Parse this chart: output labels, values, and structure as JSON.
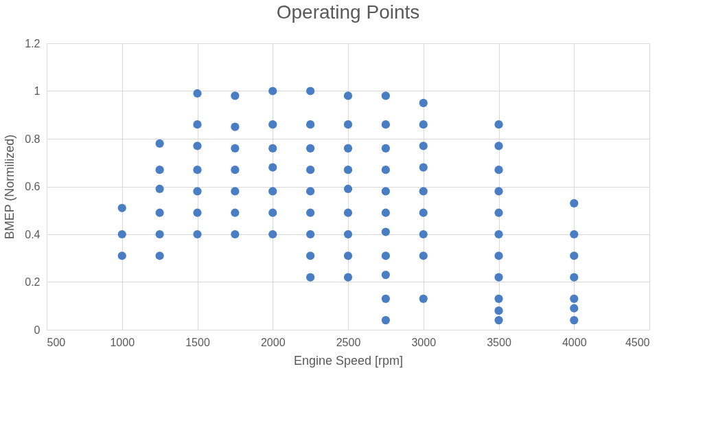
{
  "chart_data": {
    "type": "scatter",
    "title": "Operating Points",
    "xlabel": "Engine Speed [rpm]",
    "ylabel": "BMEP (Normilized)",
    "xlim": [
      500,
      4500
    ],
    "xticks": [
      500,
      1000,
      1500,
      2000,
      2500,
      3000,
      3500,
      4000,
      4500
    ],
    "ylim": [
      0,
      1.2
    ],
    "yticks": [
      0,
      0.2,
      0.4,
      0.6,
      0.8,
      1,
      1.2
    ],
    "grid": true,
    "marker": "circle",
    "series": [
      {
        "color": "#4a7ec4",
        "x": [
          1000,
          1000,
          1000,
          1250,
          1250,
          1250,
          1250,
          1250,
          1250,
          1500,
          1500,
          1500,
          1500,
          1500,
          1500,
          1500,
          1750,
          1750,
          1750,
          1750,
          1750,
          1750,
          1750,
          2000,
          2000,
          2000,
          2000,
          2000,
          2000,
          2000,
          2250,
          2250,
          2250,
          2250,
          2250,
          2250,
          2250,
          2250,
          2250,
          2500,
          2500,
          2500,
          2500,
          2500,
          2500,
          2500,
          2500,
          2500,
          2750,
          2750,
          2750,
          2750,
          2750,
          2750,
          2750,
          2750,
          2750,
          2750,
          2750,
          3000,
          3000,
          3000,
          3000,
          3000,
          3000,
          3000,
          3000,
          3000,
          3500,
          3500,
          3500,
          3500,
          3500,
          3500,
          3500,
          3500,
          3500,
          3500,
          3500,
          4000,
          4000,
          4000,
          4000,
          4000,
          4000,
          4000
        ],
        "values": [
          0.51,
          0.4,
          0.31,
          0.78,
          0.67,
          0.59,
          0.49,
          0.4,
          0.31,
          0.99,
          0.86,
          0.77,
          0.67,
          0.58,
          0.49,
          0.4,
          0.98,
          0.85,
          0.76,
          0.67,
          0.58,
          0.49,
          0.4,
          1.0,
          0.86,
          0.76,
          0.68,
          0.58,
          0.49,
          0.4,
          1.0,
          0.86,
          0.76,
          0.67,
          0.58,
          0.49,
          0.4,
          0.31,
          0.22,
          0.98,
          0.86,
          0.76,
          0.67,
          0.59,
          0.49,
          0.4,
          0.31,
          0.22,
          0.98,
          0.86,
          0.76,
          0.67,
          0.58,
          0.49,
          0.41,
          0.31,
          0.23,
          0.13,
          0.04,
          0.95,
          0.86,
          0.77,
          0.68,
          0.58,
          0.49,
          0.4,
          0.31,
          0.13,
          0.86,
          0.77,
          0.67,
          0.58,
          0.49,
          0.4,
          0.31,
          0.22,
          0.13,
          0.08,
          0.04,
          0.53,
          0.4,
          0.31,
          0.22,
          0.13,
          0.09,
          0.04
        ]
      }
    ]
  }
}
